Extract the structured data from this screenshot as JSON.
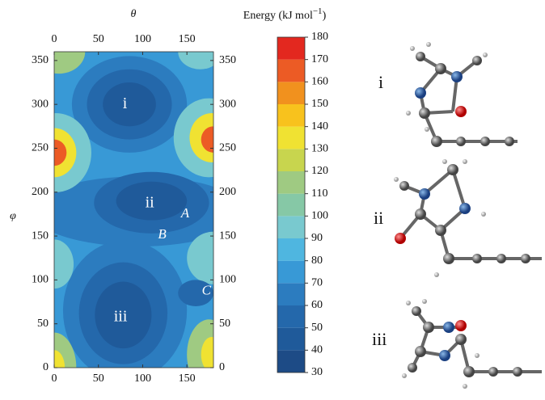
{
  "chart_data": {
    "type": "contour",
    "x_label": "θ",
    "y_label": "φ",
    "xlim": [
      0,
      180
    ],
    "xticks": [
      0,
      50,
      100,
      150
    ],
    "ylim": [
      0,
      360
    ],
    "yticks": [
      0,
      50,
      100,
      150,
      200,
      250,
      300,
      350
    ],
    "background_energy": 75,
    "features": [
      {
        "theta": 85,
        "phi": 300,
        "theta_radius": 65,
        "phi_radius": 55,
        "energy": 65
      },
      {
        "theta": 85,
        "phi": 300,
        "theta_radius": 48,
        "phi_radius": 40,
        "energy": 55
      },
      {
        "theta": 85,
        "phi": 300,
        "theta_radius": 30,
        "phi_radius": 25,
        "energy": 45
      },
      {
        "theta": 95,
        "phi": 178,
        "theta_radius": 120,
        "phi_radius": 40,
        "energy": 65
      },
      {
        "theta": 110,
        "phi": 188,
        "theta_radius": 65,
        "phi_radius": 35,
        "energy": 55
      },
      {
        "theta": 110,
        "phi": 190,
        "theta_radius": 40,
        "phi_radius": 22,
        "energy": 45
      },
      {
        "theta": 80,
        "phi": 65,
        "theta_radius": 70,
        "phi_radius": 80,
        "energy": 65
      },
      {
        "theta": 78,
        "phi": 62,
        "theta_radius": 50,
        "phi_radius": 58,
        "energy": 55
      },
      {
        "theta": 78,
        "phi": 60,
        "theta_radius": 32,
        "phi_radius": 38,
        "energy": 45
      },
      {
        "theta": 175,
        "phi": 262,
        "theta_radius": 40,
        "phi_radius": 45,
        "energy": 95
      },
      {
        "theta": 178,
        "phi": 262,
        "theta_radius": 25,
        "phi_radius": 28,
        "energy": 135
      },
      {
        "theta": 180,
        "phi": 260,
        "theta_radius": 14,
        "phi_radius": 15,
        "energy": 165
      },
      {
        "theta": 2,
        "phi": 245,
        "theta_radius": 40,
        "phi_radius": 45,
        "energy": 95
      },
      {
        "theta": 0,
        "phi": 245,
        "theta_radius": 25,
        "phi_radius": 28,
        "energy": 135
      },
      {
        "theta": 0,
        "phi": 245,
        "theta_radius": 14,
        "phi_radius": 15,
        "energy": 165
      },
      {
        "theta": 180,
        "phi": 125,
        "theta_radius": 30,
        "phi_radius": 30,
        "energy": 95
      },
      {
        "theta": 0,
        "phi": 118,
        "theta_radius": 22,
        "phi_radius": 28,
        "energy": 95
      },
      {
        "theta": 5,
        "phi": 360,
        "theta_radius": 30,
        "phi_radius": 25,
        "energy": 115
      },
      {
        "theta": 0,
        "phi": 0,
        "theta_radius": 25,
        "phi_radius": 40,
        "energy": 115
      },
      {
        "theta": 0,
        "phi": 0,
        "theta_radius": 12,
        "phi_radius": 20,
        "energy": 135
      },
      {
        "theta": 175,
        "phi": 15,
        "theta_radius": 25,
        "phi_radius": 40,
        "energy": 115
      },
      {
        "theta": 178,
        "phi": 15,
        "theta_radius": 12,
        "phi_radius": 20,
        "energy": 135
      },
      {
        "theta": 165,
        "phi": 360,
        "theta_radius": 25,
        "phi_radius": 20,
        "energy": 95
      },
      {
        "theta": 160,
        "phi": 85,
        "theta_radius": 20,
        "phi_radius": 15,
        "energy": 55
      }
    ],
    "annotations": [
      {
        "text": "i",
        "theta": 80,
        "phi": 300,
        "style": "roman"
      },
      {
        "text": "ii",
        "theta": 108,
        "phi": 187,
        "style": "roman"
      },
      {
        "text": "iii",
        "theta": 75,
        "phi": 57,
        "style": "roman"
      },
      {
        "text": "A",
        "theta": 148,
        "phi": 175,
        "style": "italic"
      },
      {
        "text": "B",
        "theta": 122,
        "phi": 151,
        "style": "italic"
      },
      {
        "text": "C",
        "theta": 172,
        "phi": 87,
        "style": "italic"
      }
    ],
    "colorbar": {
      "label": "Energy (kJ mol",
      "label_superscript": "−1",
      "label_close": ")",
      "lim": [
        30,
        180
      ],
      "ticks": [
        30,
        40,
        50,
        60,
        70,
        80,
        90,
        100,
        110,
        120,
        130,
        140,
        150,
        160,
        170,
        180
      ],
      "colors": [
        "#1d4b86",
        "#1f5a9a",
        "#2468ab",
        "#2c7cbf",
        "#3899d6",
        "#4fb6e0",
        "#79c9cf",
        "#86c8a6",
        "#9fca82",
        "#c8d54e",
        "#f0e232",
        "#f8c21d",
        "#f1911e",
        "#ec5b25",
        "#e3281f"
      ]
    }
  },
  "structures": [
    "i",
    "ii",
    "iii"
  ]
}
